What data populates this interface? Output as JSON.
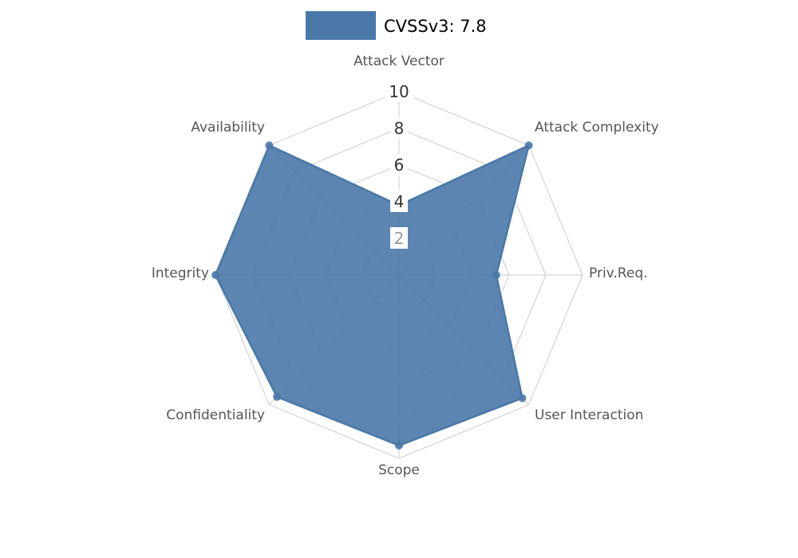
{
  "legend": {
    "label": "CVSSv3: 7.8",
    "swatch_color": "#4a78a8"
  },
  "chart_data": {
    "type": "radar",
    "title": "CVSSv3: 7.8",
    "categories": [
      "Attack Vector",
      "Attack Complexity",
      "Priv.Req.",
      "User Interaction",
      "Scope",
      "Confidentiality",
      "Integrity",
      "Availability"
    ],
    "series": [
      {
        "name": "CVSSv3: 7.8",
        "values": [
          3.8,
          10,
          5.3,
          9.5,
          9.3,
          9.4,
          10,
          10
        ]
      }
    ],
    "rmax": 10,
    "ticks": [
      10,
      8,
      6,
      4,
      2
    ],
    "grid": "spider-web",
    "legend_position": "top-center",
    "colors": {
      "series_fill": "#4a78a8",
      "series_stroke": "#4a78a8",
      "grid_line": "#cccccc",
      "axis_label": "#555555",
      "tick_label": "#333333",
      "tick_label_faint": "#999999",
      "tick_background": "#ffffff",
      "title_text": "#000000",
      "background": "#ffffff"
    }
  }
}
